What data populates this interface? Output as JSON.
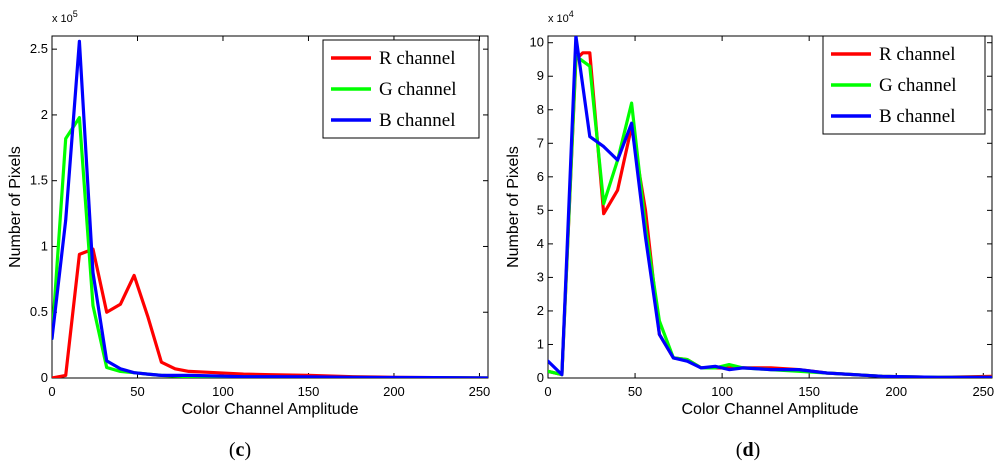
{
  "chart_data": [
    {
      "type": "line",
      "panel_label": "c",
      "xlabel": "Color Channel Amplitude",
      "ylabel": "Number of Pixels",
      "y_exponent": "x 10",
      "y_exponent_power": "5",
      "xlim": [
        0,
        255
      ],
      "ylim": [
        0,
        2.6
      ],
      "xticks": [
        0,
        50,
        100,
        150,
        200,
        250
      ],
      "xtick_labels": [
        "0",
        "50",
        "100",
        "150",
        "200",
        "250"
      ],
      "yticks": [
        0,
        0.5,
        1,
        1.5,
        2,
        2.5
      ],
      "ytick_labels": [
        "0",
        "0.5",
        "1",
        "1.5",
        "2",
        "2.5"
      ],
      "legend_position": "top-right",
      "series": [
        {
          "name": "R channel",
          "color": "#ff0000",
          "x": [
            0,
            8,
            16,
            24,
            32,
            40,
            48,
            56,
            64,
            72,
            80,
            96,
            112,
            128,
            150,
            176,
            200,
            224,
            255
          ],
          "values": [
            0,
            0.02,
            0.94,
            0.98,
            0.5,
            0.56,
            0.78,
            0.47,
            0.12,
            0.07,
            0.05,
            0.04,
            0.03,
            0.025,
            0.02,
            0.01,
            0.005,
            0.003,
            0
          ]
        },
        {
          "name": "G channel",
          "color": "#00ff00",
          "x": [
            0,
            8,
            16,
            24,
            32,
            40,
            48,
            56,
            64,
            72,
            80,
            96,
            112,
            128,
            150,
            176,
            200,
            224,
            255
          ],
          "values": [
            0.3,
            1.82,
            1.98,
            0.55,
            0.08,
            0.05,
            0.04,
            0.03,
            0.02,
            0.015,
            0.01,
            0.01,
            0.008,
            0.006,
            0.005,
            0.004,
            0.003,
            0.002,
            0
          ]
        },
        {
          "name": "B channel",
          "color": "#0000ff",
          "x": [
            0,
            8,
            16,
            24,
            32,
            40,
            48,
            56,
            64,
            72,
            80,
            96,
            112,
            128,
            150,
            176,
            200,
            224,
            255
          ],
          "values": [
            0.3,
            1.2,
            2.56,
            0.8,
            0.13,
            0.07,
            0.04,
            0.03,
            0.02,
            0.02,
            0.02,
            0.015,
            0.01,
            0.01,
            0.008,
            0.005,
            0.004,
            0.003,
            0
          ]
        }
      ]
    },
    {
      "type": "line",
      "panel_label": "d",
      "xlabel": "Color Channel Amplitude",
      "ylabel": "Number of Pixels",
      "y_exponent": "x 10",
      "y_exponent_power": "4",
      "xlim": [
        0,
        255
      ],
      "ylim": [
        0,
        10.2
      ],
      "xticks": [
        0,
        50,
        100,
        150,
        200,
        250
      ],
      "xtick_labels": [
        "0",
        "50",
        "100",
        "150",
        "200",
        "250"
      ],
      "yticks": [
        0,
        1,
        2,
        3,
        4,
        5,
        6,
        7,
        8,
        9,
        10
      ],
      "ytick_labels": [
        "0",
        "1",
        "2",
        "3",
        "4",
        "5",
        "6",
        "7",
        "8",
        "9",
        "10"
      ],
      "legend_position": "top-right",
      "series": [
        {
          "name": "R channel",
          "color": "#ff0000",
          "x": [
            0,
            8,
            16,
            20,
            24,
            32,
            40,
            48,
            56,
            64,
            72,
            80,
            88,
            96,
            104,
            112,
            128,
            144,
            160,
            192,
            224,
            255
          ],
          "values": [
            0.2,
            0.1,
            9.5,
            9.7,
            9.7,
            4.9,
            5.6,
            7.5,
            5.0,
            1.3,
            0.6,
            0.55,
            0.3,
            0.3,
            0.3,
            0.3,
            0.3,
            0.25,
            0.15,
            0.05,
            0.02,
            0.05
          ]
        },
        {
          "name": "G channel",
          "color": "#00ff00",
          "x": [
            0,
            8,
            16,
            24,
            32,
            40,
            48,
            56,
            64,
            72,
            80,
            88,
            96,
            104,
            112,
            128,
            144,
            160,
            192,
            224,
            255
          ],
          "values": [
            0.2,
            0.1,
            9.6,
            9.3,
            5.2,
            6.5,
            8.2,
            4.5,
            1.7,
            0.6,
            0.55,
            0.3,
            0.3,
            0.4,
            0.3,
            0.25,
            0.2,
            0.15,
            0.05,
            0.02,
            0.02
          ]
        },
        {
          "name": "B channel",
          "color": "#0000ff",
          "x": [
            0,
            8,
            16,
            24,
            32,
            40,
            48,
            56,
            64,
            72,
            80,
            88,
            96,
            104,
            112,
            128,
            144,
            160,
            192,
            224,
            255
          ],
          "values": [
            0.5,
            0.1,
            10.2,
            7.2,
            6.9,
            6.5,
            7.6,
            4.2,
            1.3,
            0.6,
            0.5,
            0.3,
            0.35,
            0.25,
            0.3,
            0.25,
            0.25,
            0.15,
            0.05,
            0.02,
            0.02
          ]
        }
      ]
    }
  ]
}
